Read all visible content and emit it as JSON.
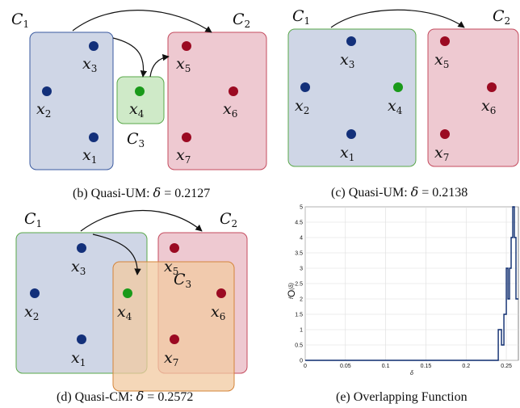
{
  "panels": {
    "b": {
      "caption_prefix": "(b) Quasi-UM: ",
      "caption_symbol": "δ",
      "caption_value": " = 0.2127",
      "clusters": [
        "C1",
        "C2",
        "C3"
      ],
      "points": [
        "x3",
        "x2",
        "x1",
        "x4",
        "x5",
        "x6",
        "x7"
      ]
    },
    "c": {
      "caption_prefix": "(c) Quasi-UM: ",
      "caption_symbol": "δ",
      "caption_value": " = 0.2138",
      "clusters": [
        "C1",
        "C2"
      ],
      "points": [
        "x3",
        "x2",
        "x4",
        "x1",
        "x5",
        "x6",
        "x7"
      ]
    },
    "d": {
      "caption_prefix": "(d) Quasi-CM: ",
      "caption_symbol": "δ",
      "caption_value": " = 0.2572",
      "clusters": [
        "C1",
        "C2",
        "C3"
      ],
      "points": [
        "x3",
        "x2",
        "x4",
        "x1",
        "x5",
        "x6",
        "x7"
      ]
    },
    "e": {
      "caption": "(e) Overlapping Function"
    }
  },
  "colors": {
    "blue_fill": "#cfd6e6",
    "blue_stroke": "#3a5aa0",
    "red_fill": "#eec9d1",
    "red_stroke": "#c44b5e",
    "green_fill": "#cfeac8",
    "green_stroke": "#5aa84a",
    "orange_fill": "#f2c9a0",
    "orange_stroke": "#d4843a",
    "point_blue": "#13307a",
    "point_red": "#9b0a22",
    "point_green": "#1a9a1a",
    "plot_line": "#0b2a6e"
  },
  "chart_data": {
    "type": "line",
    "title": "",
    "xlabel": "δ",
    "ylabel": "f_O(δ)",
    "xlim": [
      0,
      0.265
    ],
    "ylim": [
      0,
      5
    ],
    "xticks": [
      "0",
      "0.05",
      "0.1",
      "0.15",
      "0.2",
      "0.25"
    ],
    "yticks": [
      "0",
      "0.5",
      "1",
      "1.5",
      "2",
      "2.5",
      "3",
      "3.5",
      "4",
      "4.5",
      "5"
    ],
    "grid": true,
    "series": [
      {
        "x": [
          0,
          0.24,
          0.24,
          0.244,
          0.244,
          0.247,
          0.247,
          0.25,
          0.25,
          0.252,
          0.252,
          0.254,
          0.254,
          0.256,
          0.256,
          0.258,
          0.258,
          0.26,
          0.26,
          0.262,
          0.262,
          0.265
        ],
        "y": [
          0,
          0,
          1,
          1,
          0.5,
          0.5,
          1.5,
          1.5,
          3,
          3,
          2,
          2,
          3,
          3,
          4,
          4,
          5,
          5,
          4,
          4,
          2,
          2
        ]
      }
    ]
  }
}
